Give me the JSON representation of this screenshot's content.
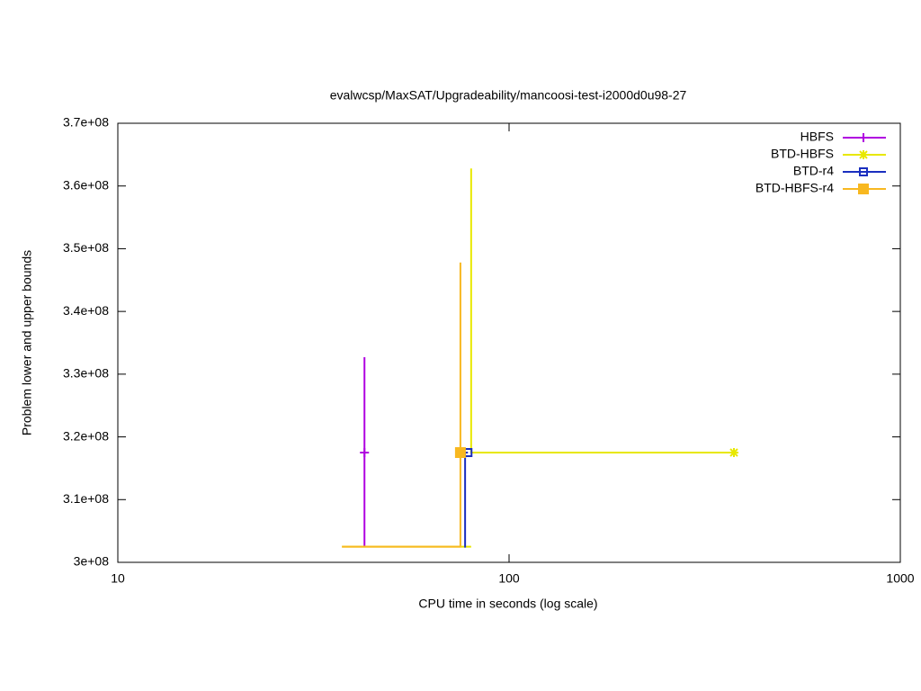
{
  "chart_data": {
    "type": "line",
    "title": "evalwcsp/MaxSAT/Upgradeability/mancoosi-test-i2000d0u98-27",
    "xlabel": "CPU time in seconds (log scale)",
    "ylabel": "Problem lower and upper bounds",
    "xscale": "log",
    "xlim": [
      10,
      1000
    ],
    "xticks": [
      10,
      100,
      1000
    ],
    "ylim": [
      300000000,
      370000000
    ],
    "yticks": [
      {
        "value": 300000000,
        "label": "3e+08"
      },
      {
        "value": 310000000,
        "label": "3.1e+08"
      },
      {
        "value": 320000000,
        "label": "3.2e+08"
      },
      {
        "value": 330000000,
        "label": "3.3e+08"
      },
      {
        "value": 340000000,
        "label": "3.4e+08"
      },
      {
        "value": 350000000,
        "label": "3.5e+08"
      },
      {
        "value": 360000000,
        "label": "3.6e+08"
      },
      {
        "value": 370000000,
        "label": "3.7e+08"
      }
    ],
    "legend": "top-right",
    "series": [
      {
        "name": "HBFS",
        "color": "#b000e0",
        "marker": "plus",
        "x": [
          42.7,
          42.7,
          42.7
        ],
        "values": [
          302500000,
          332700000,
          317500000
        ]
      },
      {
        "name": "BTD-HBFS",
        "color": "#e8e800",
        "marker": "star",
        "x": [
          37.4,
          80.0,
          null,
          80.0,
          80.0,
          375.6
        ],
        "values": [
          302500000,
          302500000,
          null,
          362800000,
          317500000,
          317500000
        ]
      },
      {
        "name": "BTD-r4",
        "color": "#1a2fbf",
        "marker": "open-square",
        "x": [
          76.8,
          77.2,
          77.2,
          78.5
        ],
        "values": [
          302500000,
          302500000,
          317500000,
          317500000
        ]
      },
      {
        "name": "BTD-HBFS-r4",
        "color": "#f8b820",
        "marker": "filled-square",
        "x": [
          37.4,
          75.1,
          75.1,
          75.1
        ],
        "values": [
          302500000,
          302500000,
          347800000,
          317500000
        ]
      }
    ]
  }
}
